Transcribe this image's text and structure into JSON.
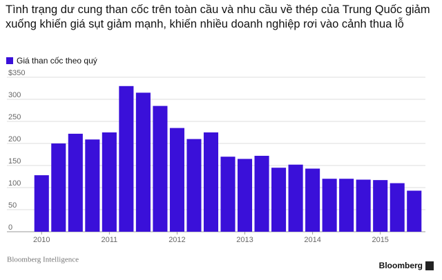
{
  "chart_data": {
    "type": "bar",
    "title": "Tình trạng dư cung than cốc trên toàn cầu và nhu cầu về thép của Trung Quốc giảm xuống khiến giá sụt giảm mạnh, khiến nhiều doanh nghiệp rơi vào cảnh thua lỗ",
    "categories": [
      "2010",
      null,
      null,
      null,
      "2011",
      null,
      null,
      null,
      "2012",
      null,
      null,
      null,
      "2013",
      null,
      null,
      null,
      "2014",
      null,
      null,
      null,
      "2015",
      null,
      null
    ],
    "series": [
      {
        "name": "Giá than cốc theo quý",
        "color": "#3a10d9",
        "values": [
          128,
          200,
          222,
          209,
          225,
          330,
          315,
          285,
          235,
          210,
          225,
          170,
          165,
          172,
          145,
          152,
          143,
          120,
          120,
          118,
          117,
          110,
          93
        ]
      }
    ],
    "ylim": [
      0,
      350
    ],
    "yticks": [
      0,
      50,
      100,
      150,
      200,
      250,
      300,
      {
        "value": 350,
        "label": "$350"
      }
    ],
    "grid": true,
    "source": "Bloomberg Intelligence",
    "logo": "Bloomberg"
  }
}
